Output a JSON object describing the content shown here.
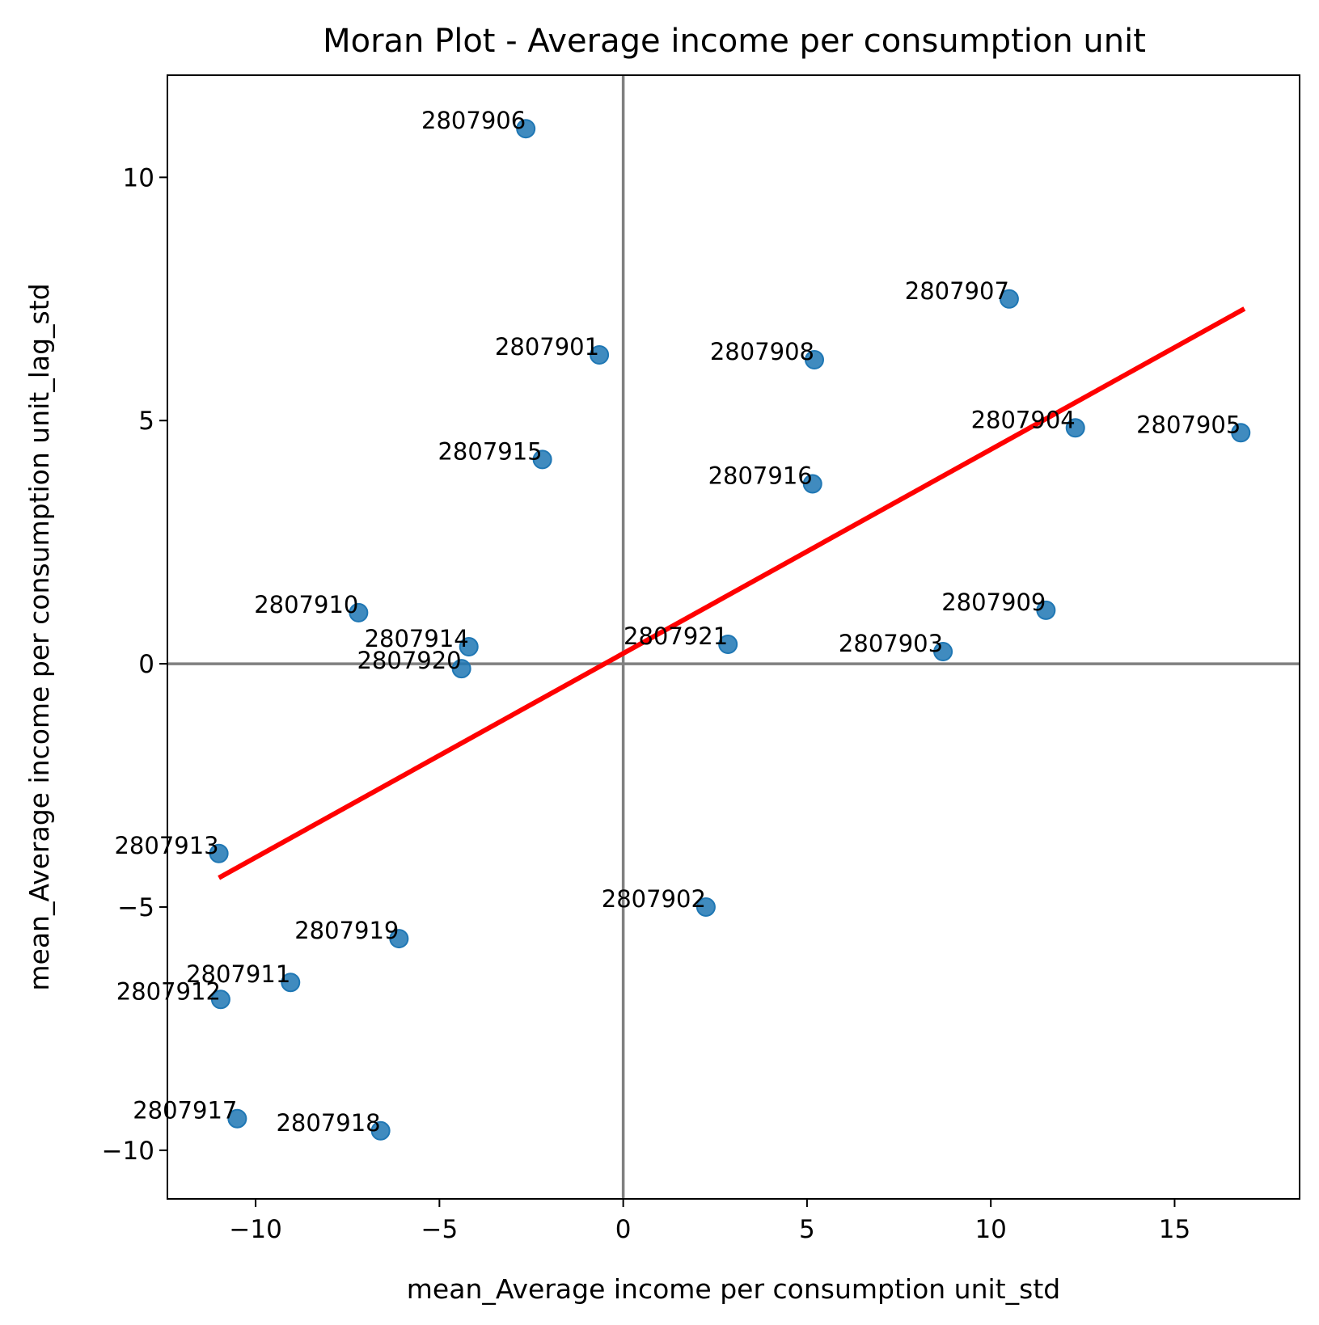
{
  "chart_data": {
    "type": "scatter",
    "title": "Moran Plot - Average income per consumption unit",
    "xlabel": "mean_Average income per consumption unit_std",
    "ylabel": "mean_Average income per consumption unit_lag_std",
    "xlim": [
      -12.4,
      18.4
    ],
    "ylim": [
      -11.0,
      12.1
    ],
    "xticks": [
      -10,
      -5,
      0,
      5,
      10,
      15
    ],
    "yticks": [
      -10,
      -5,
      0,
      5,
      10
    ],
    "xtick_labels": [
      "−10",
      "−5",
      "0",
      "5",
      "10",
      "15"
    ],
    "ytick_labels": [
      "−10",
      "−5",
      "0",
      "5",
      "10"
    ],
    "grid": false,
    "reference_lines": {
      "x": 0,
      "y": 0,
      "color": "#808080"
    },
    "point_color": "#1f77b4",
    "regression_line": {
      "color": "#ff0000",
      "x": [
        -11.0,
        16.9
      ],
      "y": [
        -4.4,
        7.3
      ]
    },
    "points": [
      {
        "label": "2807906",
        "x": -2.65,
        "y": 11.0
      },
      {
        "label": "2807907",
        "x": 10.5,
        "y": 7.5
      },
      {
        "label": "2807901",
        "x": -0.65,
        "y": 6.35
      },
      {
        "label": "2807908",
        "x": 5.2,
        "y": 6.25
      },
      {
        "label": "2807904",
        "x": 12.3,
        "y": 4.85
      },
      {
        "label": "2807905",
        "x": 16.8,
        "y": 4.75
      },
      {
        "label": "2807915",
        "x": -2.2,
        "y": 4.2
      },
      {
        "label": "2807916",
        "x": 5.15,
        "y": 3.7
      },
      {
        "label": "2807910",
        "x": -7.2,
        "y": 1.05
      },
      {
        "label": "2807909",
        "x": 11.5,
        "y": 1.1
      },
      {
        "label": "2807914",
        "x": -4.2,
        "y": 0.35
      },
      {
        "label": "2807921",
        "x": 2.85,
        "y": 0.4
      },
      {
        "label": "2807903",
        "x": 8.7,
        "y": 0.25
      },
      {
        "label": "2807920",
        "x": -4.4,
        "y": -0.1
      },
      {
        "label": "2807913",
        "x": -11.0,
        "y": -3.9
      },
      {
        "label": "2807902",
        "x": 2.25,
        "y": -5.0
      },
      {
        "label": "2807919",
        "x": -6.1,
        "y": -5.65
      },
      {
        "label": "2807911",
        "x": -9.05,
        "y": -6.55
      },
      {
        "label": "2807912",
        "x": -10.95,
        "y": -6.9
      },
      {
        "label": "2807917",
        "x": -10.5,
        "y": -9.35
      },
      {
        "label": "2807918",
        "x": -6.6,
        "y": -9.6
      }
    ]
  }
}
